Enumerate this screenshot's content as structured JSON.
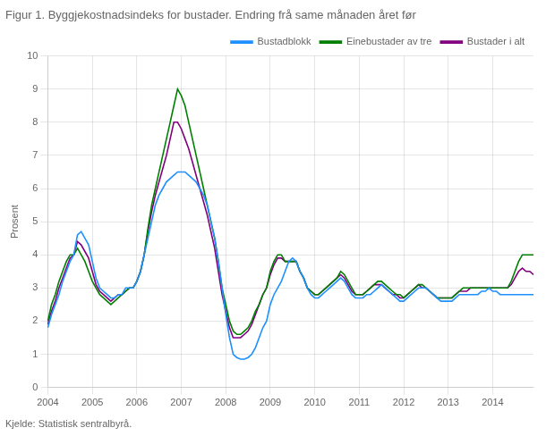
{
  "chart_data": {
    "type": "line",
    "title": "Figur 1. Byggjekostnadsindeks for bustader. Endring frå same månaden året før",
    "y_label": "Prosent",
    "annotations": [
      "Kjelde: Statistisk sentralbyrå."
    ],
    "categories": [
      "2004",
      null,
      null,
      null,
      null,
      null,
      null,
      null,
      null,
      null,
      null,
      null,
      "2005",
      null,
      null,
      null,
      null,
      null,
      null,
      null,
      null,
      null,
      null,
      null,
      "2006",
      null,
      null,
      null,
      null,
      null,
      null,
      null,
      null,
      null,
      null,
      null,
      "2007",
      null,
      null,
      null,
      null,
      null,
      null,
      null,
      null,
      null,
      null,
      null,
      "2008",
      null,
      null,
      null,
      null,
      null,
      null,
      null,
      null,
      null,
      null,
      null,
      "2009",
      null,
      null,
      null,
      null,
      null,
      null,
      null,
      null,
      null,
      null,
      null,
      "2010",
      null,
      null,
      null,
      null,
      null,
      null,
      null,
      null,
      null,
      null,
      null,
      "2011",
      null,
      null,
      null,
      null,
      null,
      null,
      null,
      null,
      null,
      null,
      null,
      "2012",
      null,
      null,
      null,
      null,
      null,
      null,
      null,
      null,
      null,
      null,
      null,
      "2013",
      null,
      null,
      null,
      null,
      null,
      null,
      null,
      null,
      null,
      null,
      null,
      "2014",
      null,
      null,
      null,
      null,
      null,
      null,
      null,
      null,
      null,
      null,
      null
    ],
    "series": [
      {
        "name": "Bustadblokk",
        "color": "#1e90ff",
        "values": [
          1.8,
          2.2,
          2.5,
          2.8,
          3.2,
          3.5,
          3.8,
          4.0,
          4.6,
          4.7,
          4.5,
          4.3,
          3.8,
          3.3,
          3.0,
          2.9,
          2.8,
          2.7,
          2.7,
          2.8,
          2.8,
          3.0,
          3.0,
          3.0,
          3.2,
          3.5,
          4.0,
          4.5,
          5.0,
          5.5,
          5.8,
          6.0,
          6.2,
          6.3,
          6.4,
          6.5,
          6.5,
          6.5,
          6.4,
          6.3,
          6.2,
          6.0,
          5.8,
          5.5,
          5.0,
          4.5,
          3.8,
          3.0,
          2.2,
          1.5,
          1.0,
          0.9,
          0.85,
          0.85,
          0.9,
          1.0,
          1.2,
          1.5,
          1.8,
          2.0,
          2.5,
          2.8,
          3.0,
          3.2,
          3.5,
          3.8,
          3.9,
          3.8,
          3.5,
          3.3,
          3.0,
          2.8,
          2.7,
          2.7,
          2.8,
          2.9,
          3.0,
          3.1,
          3.2,
          3.3,
          3.2,
          3.0,
          2.8,
          2.7,
          2.7,
          2.7,
          2.8,
          2.8,
          2.9,
          3.0,
          3.1,
          3.0,
          2.9,
          2.8,
          2.7,
          2.6,
          2.6,
          2.7,
          2.8,
          2.9,
          3.0,
          3.0,
          3.0,
          2.9,
          2.8,
          2.7,
          2.6,
          2.6,
          2.6,
          2.6,
          2.7,
          2.8,
          2.8,
          2.8,
          2.8,
          2.8,
          2.8,
          2.9,
          2.9,
          3.0,
          2.9,
          2.9,
          2.8,
          2.8,
          2.8,
          2.8,
          2.8,
          2.8,
          2.8,
          2.8,
          2.8,
          2.8
        ]
      },
      {
        "name": "Einebustader av tre",
        "color": "#008000",
        "values": [
          2.0,
          2.5,
          2.8,
          3.2,
          3.5,
          3.8,
          4.0,
          4.0,
          4.2,
          4.0,
          3.8,
          3.5,
          3.2,
          3.0,
          2.8,
          2.7,
          2.6,
          2.5,
          2.6,
          2.7,
          2.8,
          2.9,
          3.0,
          3.0,
          3.2,
          3.5,
          4.0,
          4.8,
          5.5,
          6.0,
          6.5,
          7.0,
          7.5,
          8.0,
          8.5,
          9.0,
          8.8,
          8.5,
          8.0,
          7.5,
          7.0,
          6.5,
          6.0,
          5.5,
          5.0,
          4.5,
          3.8,
          3.0,
          2.5,
          2.0,
          1.7,
          1.6,
          1.6,
          1.7,
          1.8,
          2.0,
          2.3,
          2.5,
          2.8,
          3.0,
          3.5,
          3.8,
          4.0,
          4.0,
          3.8,
          3.8,
          3.8,
          3.8,
          3.5,
          3.3,
          3.0,
          2.9,
          2.8,
          2.8,
          2.9,
          3.0,
          3.1,
          3.2,
          3.3,
          3.5,
          3.4,
          3.2,
          3.0,
          2.8,
          2.8,
          2.8,
          2.9,
          3.0,
          3.1,
          3.2,
          3.2,
          3.1,
          3.0,
          2.9,
          2.8,
          2.8,
          2.7,
          2.8,
          2.9,
          3.0,
          3.1,
          3.1,
          3.0,
          2.9,
          2.8,
          2.7,
          2.7,
          2.7,
          2.7,
          2.7,
          2.8,
          2.9,
          3.0,
          3.0,
          3.0,
          3.0,
          3.0,
          3.0,
          3.0,
          3.0,
          3.0,
          3.0,
          3.0,
          3.0,
          3.0,
          3.2,
          3.5,
          3.8,
          4.0,
          4.0,
          4.0,
          4.0
        ]
      },
      {
        "name": "Bustader i alt",
        "color": "#800080",
        "values": [
          1.9,
          2.3,
          2.6,
          3.0,
          3.3,
          3.6,
          3.9,
          4.0,
          4.4,
          4.3,
          4.1,
          3.9,
          3.5,
          3.1,
          2.9,
          2.8,
          2.7,
          2.6,
          2.7,
          2.8,
          2.8,
          2.9,
          3.0,
          3.0,
          3.2,
          3.5,
          4.0,
          4.7,
          5.3,
          5.8,
          6.2,
          6.6,
          7.0,
          7.5,
          8.0,
          8.0,
          7.8,
          7.5,
          7.2,
          6.8,
          6.4,
          6.0,
          5.6,
          5.2,
          4.7,
          4.2,
          3.5,
          2.8,
          2.3,
          1.8,
          1.5,
          1.5,
          1.5,
          1.6,
          1.7,
          1.9,
          2.2,
          2.5,
          2.8,
          3.0,
          3.4,
          3.7,
          3.9,
          3.9,
          3.8,
          3.8,
          3.8,
          3.8,
          3.5,
          3.3,
          3.0,
          2.9,
          2.8,
          2.8,
          2.9,
          3.0,
          3.1,
          3.2,
          3.3,
          3.4,
          3.3,
          3.1,
          2.9,
          2.8,
          2.8,
          2.8,
          2.9,
          3.0,
          3.1,
          3.1,
          3.1,
          3.0,
          2.9,
          2.8,
          2.8,
          2.7,
          2.7,
          2.8,
          2.9,
          3.0,
          3.1,
          3.0,
          3.0,
          2.9,
          2.8,
          2.7,
          2.7,
          2.7,
          2.7,
          2.7,
          2.8,
          2.9,
          2.9,
          2.9,
          3.0,
          3.0,
          3.0,
          3.0,
          3.0,
          3.0,
          3.0,
          3.0,
          3.0,
          3.0,
          3.0,
          3.1,
          3.3,
          3.5,
          3.6,
          3.5,
          3.5,
          3.4
        ]
      }
    ],
    "ylim": [
      0,
      10
    ],
    "yticks": [
      0,
      1,
      2,
      3,
      4,
      5,
      6,
      7,
      8,
      9,
      10
    ],
    "grid": true,
    "legend": "upper right"
  }
}
